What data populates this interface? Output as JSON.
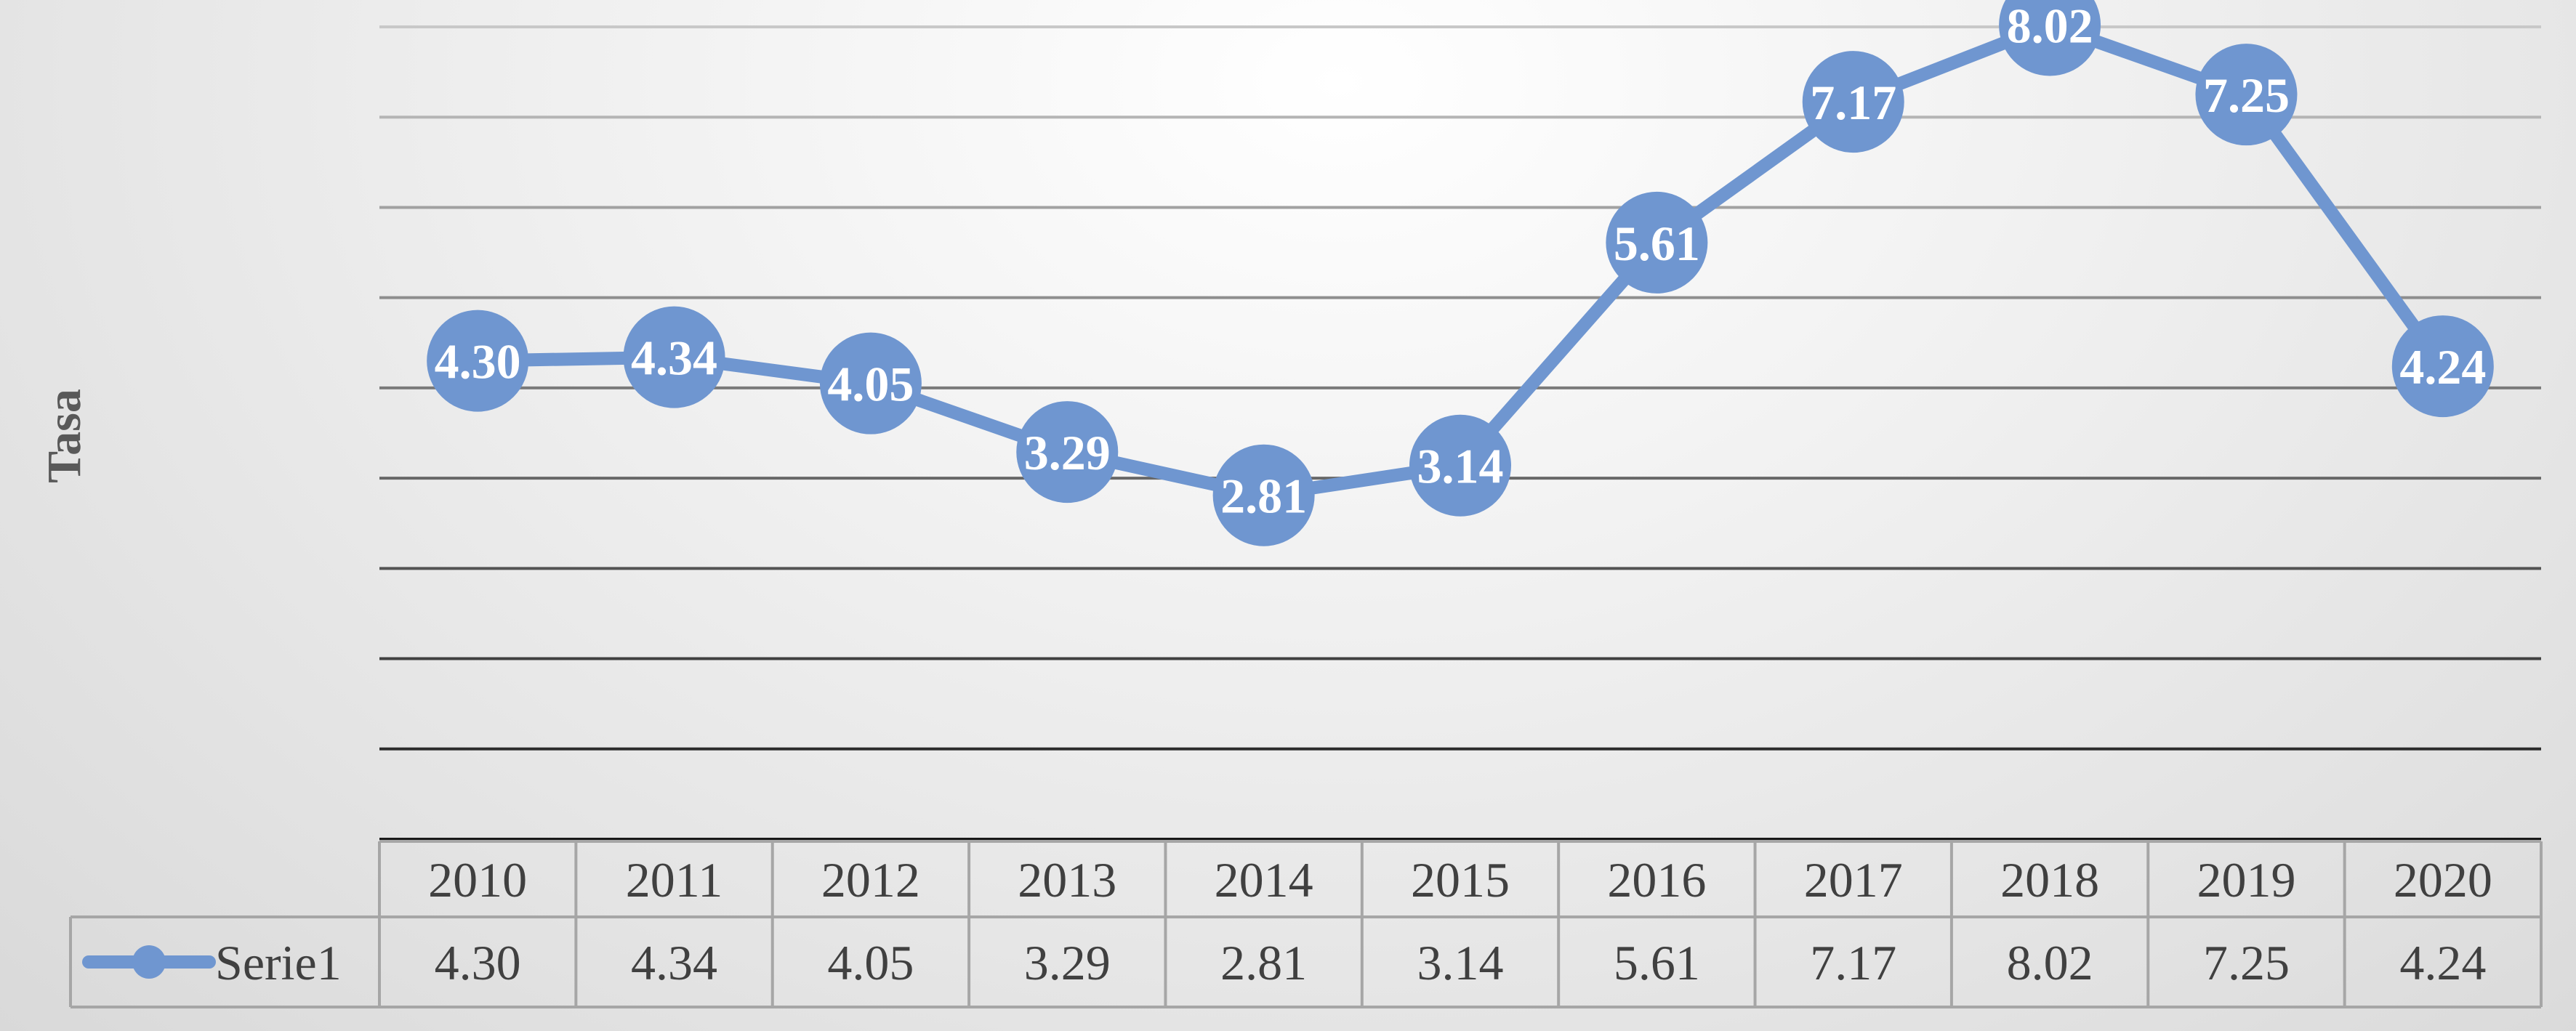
{
  "chart_data": {
    "type": "line",
    "title": "",
    "xlabel": "",
    "ylabel": "Tasa",
    "categories": [
      "2010",
      "2011",
      "2012",
      "2013",
      "2014",
      "2015",
      "2016",
      "2017",
      "2018",
      "2019",
      "2020"
    ],
    "series": [
      {
        "name": "Serie1",
        "values": [
          4.3,
          4.34,
          4.05,
          3.29,
          2.81,
          3.14,
          5.61,
          7.17,
          8.02,
          7.25,
          4.24
        ],
        "labels": [
          "4.30",
          "4.34",
          "4.05",
          "3.29",
          "2.81",
          "3.14",
          "5.61",
          "7.17",
          "8.02",
          "7.25",
          "4.24"
        ],
        "color": "#6f96d0"
      }
    ],
    "ylim": [
      -1,
      8
    ],
    "grid": true,
    "legend": "data-table",
    "data_table": true
  }
}
